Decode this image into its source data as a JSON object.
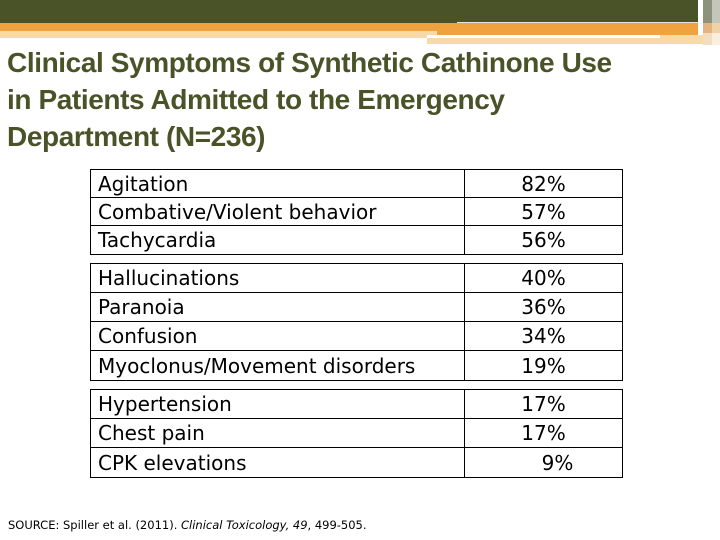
{
  "slide_title": {
    "full": "Clinical Symptoms of Synthetic Cathinone Use in Patients Admitted to the Emergency Department (N=236)",
    "lines": [
      "Clinical Symptoms of Synthetic Cathinone Use",
      "in Patients Admitted to the Emergency",
      "Department (N=236)"
    ]
  },
  "table": {
    "groups": [
      {
        "rows": [
          {
            "label": "Agitation",
            "value": "82%"
          },
          {
            "label": "Combative/Violent behavior",
            "value": "57%"
          },
          {
            "label": "Tachycardia",
            "value": "56%"
          }
        ]
      },
      {
        "rows": [
          {
            "label": "Hallucinations",
            "value": "40%"
          },
          {
            "label": "Paranoia",
            "value": "36%"
          },
          {
            "label": "Confusion",
            "value": "34%"
          },
          {
            "label": "Myoclonus/Movement disorders",
            "value": "19%"
          }
        ]
      },
      {
        "rows": [
          {
            "label": "Hypertension",
            "value": "17%"
          },
          {
            "label": "Chest pain",
            "value": "17%"
          },
          {
            "label": "CPK elevations",
            "value": "9%"
          }
        ]
      }
    ]
  },
  "source": {
    "prefix": "SOURCE: Spiller et al. (2011). ",
    "italic": "Clinical Toxicology, 49",
    "suffix": ", 499-505."
  },
  "chart_data": {
    "type": "table",
    "title": "Clinical Symptoms of Synthetic Cathinone Use in Patients Admitted to the Emergency Department (N=236)",
    "n": 236,
    "rows": [
      {
        "symptom": "Agitation",
        "percent": 82
      },
      {
        "symptom": "Combative/Violent behavior",
        "percent": 57
      },
      {
        "symptom": "Tachycardia",
        "percent": 56
      },
      {
        "symptom": "Hallucinations",
        "percent": 40
      },
      {
        "symptom": "Paranoia",
        "percent": 36
      },
      {
        "symptom": "Confusion",
        "percent": 34
      },
      {
        "symptom": "Myoclonus/Movement disorders",
        "percent": 19
      },
      {
        "symptom": "Hypertension",
        "percent": 17
      },
      {
        "symptom": "Chest pain",
        "percent": 17
      },
      {
        "symptom": "CPK elevations",
        "percent": 9
      }
    ],
    "source": "SOURCE: Spiller et al. (2011). Clinical Toxicology, 49, 499-505."
  },
  "colors": {
    "accent_dark_olive": "#4a5227",
    "accent_orange": "#efa23e",
    "accent_peach": "#f8d9a9",
    "corner_gray": "#c3c6b9",
    "title_text": "#4a5227",
    "table_border": "#000000",
    "table_text": "#000000"
  }
}
